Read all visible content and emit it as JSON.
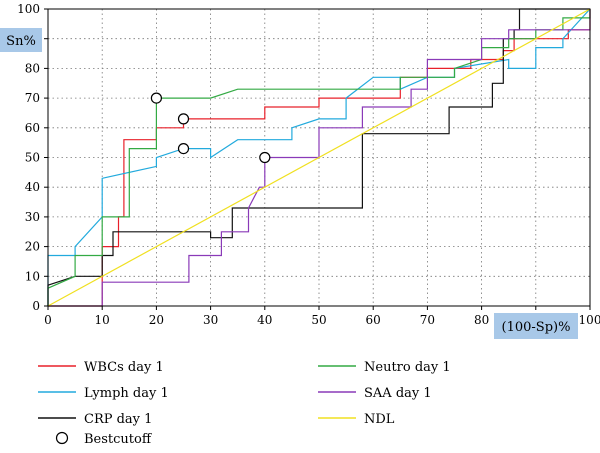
{
  "chart_data": {
    "type": "line",
    "ylabel": "Sn%",
    "xlabel": "(100-Sp)%",
    "xlim": [
      0,
      100
    ],
    "ylim": [
      0,
      100
    ],
    "x_ticks": [
      "0",
      "10",
      "20",
      "30",
      "40",
      "50",
      "60",
      "70",
      "80",
      "90",
      "100"
    ],
    "y_ticks": [
      "0",
      "10",
      "20",
      "30",
      "40",
      "50",
      "60",
      "70",
      "80",
      "90",
      "100"
    ],
    "grid": "dotted",
    "axis_label_background": "#a8c8e8",
    "series": [
      {
        "name": "WBCs day 1",
        "color": "#e8202a",
        "points": [
          [
            0,
            0
          ],
          [
            10,
            0
          ],
          [
            10,
            20
          ],
          [
            13,
            20
          ],
          [
            13,
            30
          ],
          [
            14,
            30
          ],
          [
            14,
            56
          ],
          [
            20,
            56
          ],
          [
            20,
            60
          ],
          [
            25,
            60
          ],
          [
            25,
            63
          ],
          [
            40,
            63
          ],
          [
            40,
            67
          ],
          [
            50,
            67
          ],
          [
            50,
            70
          ],
          [
            65,
            70
          ],
          [
            65,
            77
          ],
          [
            70,
            77
          ],
          [
            70,
            80
          ],
          [
            78,
            80
          ],
          [
            78,
            83
          ],
          [
            84,
            83
          ],
          [
            84,
            86
          ],
          [
            86,
            86
          ],
          [
            86,
            90
          ],
          [
            96,
            90
          ],
          [
            96,
            93
          ],
          [
            100,
            93
          ],
          [
            100,
            100
          ]
        ]
      },
      {
        "name": "Lymph day 1",
        "color": "#22aadd",
        "points": [
          [
            0,
            0
          ],
          [
            0,
            17
          ],
          [
            5,
            17
          ],
          [
            5,
            20
          ],
          [
            10,
            30
          ],
          [
            10,
            43
          ],
          [
            20,
            47
          ],
          [
            20,
            50
          ],
          [
            25,
            53
          ],
          [
            30,
            53
          ],
          [
            30,
            50
          ],
          [
            35,
            56
          ],
          [
            45,
            56
          ],
          [
            45,
            60
          ],
          [
            50,
            63
          ],
          [
            55,
            63
          ],
          [
            55,
            70
          ],
          [
            60,
            77
          ],
          [
            65,
            77
          ],
          [
            65,
            73
          ],
          [
            70,
            77
          ],
          [
            75,
            77
          ],
          [
            75,
            80
          ],
          [
            85,
            83
          ],
          [
            85,
            80
          ],
          [
            90,
            80
          ],
          [
            90,
            87
          ],
          [
            95,
            87
          ],
          [
            95,
            90
          ],
          [
            100,
            100
          ]
        ]
      },
      {
        "name": "CRP day 1",
        "color": "#111111",
        "points": [
          [
            0,
            0
          ],
          [
            0,
            7
          ],
          [
            5,
            10
          ],
          [
            10,
            10
          ],
          [
            10,
            17
          ],
          [
            12,
            17
          ],
          [
            12,
            25
          ],
          [
            30,
            25
          ],
          [
            30,
            23
          ],
          [
            34,
            23
          ],
          [
            34,
            33
          ],
          [
            58,
            33
          ],
          [
            58,
            58
          ],
          [
            74,
            58
          ],
          [
            74,
            67
          ],
          [
            82,
            67
          ],
          [
            82,
            75
          ],
          [
            84,
            75
          ],
          [
            84,
            90
          ],
          [
            86,
            90
          ],
          [
            86,
            93
          ],
          [
            87,
            93
          ],
          [
            87,
            100
          ],
          [
            100,
            100
          ]
        ]
      },
      {
        "name": "Neutro day 1",
        "color": "#33aa44",
        "points": [
          [
            0,
            0
          ],
          [
            0,
            6
          ],
          [
            5,
            10
          ],
          [
            5,
            17
          ],
          [
            10,
            17
          ],
          [
            10,
            30
          ],
          [
            15,
            30
          ],
          [
            15,
            53
          ],
          [
            20,
            53
          ],
          [
            20,
            70
          ],
          [
            30,
            70
          ],
          [
            35,
            73
          ],
          [
            65,
            73
          ],
          [
            65,
            77
          ],
          [
            75,
            77
          ],
          [
            75,
            80
          ],
          [
            80,
            83
          ],
          [
            80,
            87
          ],
          [
            85,
            87
          ],
          [
            85,
            90
          ],
          [
            90,
            90
          ],
          [
            90,
            93
          ],
          [
            95,
            93
          ],
          [
            95,
            97
          ],
          [
            100,
            97
          ],
          [
            100,
            100
          ]
        ]
      },
      {
        "name": "SAA day 1",
        "color": "#8a3ab8",
        "points": [
          [
            0,
            0
          ],
          [
            10,
            0
          ],
          [
            10,
            8
          ],
          [
            26,
            8
          ],
          [
            26,
            17
          ],
          [
            32,
            17
          ],
          [
            32,
            25
          ],
          [
            37,
            25
          ],
          [
            37,
            33
          ],
          [
            39,
            40
          ],
          [
            40,
            40
          ],
          [
            40,
            50
          ],
          [
            50,
            50
          ],
          [
            50,
            60
          ],
          [
            58,
            60
          ],
          [
            58,
            67
          ],
          [
            67,
            67
          ],
          [
            67,
            73
          ],
          [
            70,
            73
          ],
          [
            70,
            83
          ],
          [
            80,
            83
          ],
          [
            80,
            90
          ],
          [
            85,
            90
          ],
          [
            85,
            93
          ],
          [
            100,
            93
          ],
          [
            100,
            100
          ]
        ]
      },
      {
        "name": "NDL",
        "color": "#f0e020",
        "points": [
          [
            0,
            0
          ],
          [
            100,
            100
          ]
        ]
      }
    ],
    "best_cutoff": {
      "name": "Bestcutoff",
      "points": [
        [
          20,
          70
        ],
        [
          25,
          63
        ],
        [
          25,
          53
        ],
        [
          40,
          50
        ]
      ]
    }
  }
}
